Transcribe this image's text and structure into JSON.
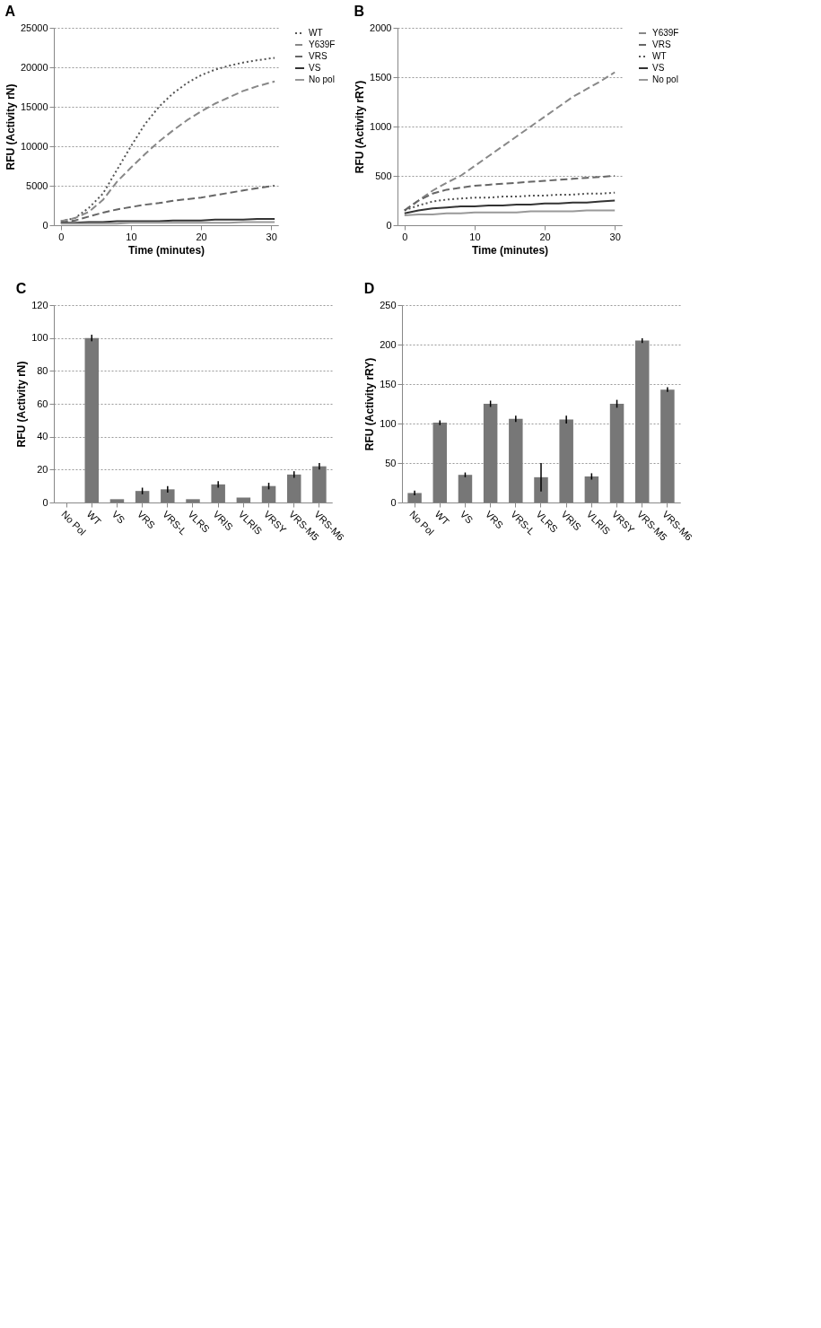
{
  "chart_data": [
    {
      "type": "line",
      "title": "A",
      "xlabel": "Time (minutes)",
      "ylabel": "RFU (Activity rN)",
      "xlim": [
        -1,
        31
      ],
      "xticks": [
        0,
        10,
        20,
        30
      ],
      "ylim": [
        0,
        25000
      ],
      "yticks": [
        0,
        5000,
        10000,
        15000,
        20000,
        25000
      ],
      "grid": "y",
      "legend": "right",
      "x": [
        0,
        2,
        4,
        6,
        8,
        10,
        12,
        14,
        16,
        18,
        20,
        22,
        24,
        26,
        28,
        30.5
      ],
      "series": [
        {
          "name": "WT",
          "color": "#555555",
          "line_style": "dotted",
          "values": [
            500,
            900,
            2200,
            4000,
            7000,
            10000,
            12800,
            15000,
            16700,
            18000,
            19000,
            19700,
            20200,
            20600,
            20900,
            21200
          ]
        },
        {
          "name": "Y639F",
          "color": "#888888",
          "line_style": "dashed",
          "values": [
            500,
            900,
            1700,
            3200,
            5500,
            7300,
            9000,
            10600,
            12000,
            13300,
            14400,
            15400,
            16200,
            17000,
            17600,
            18200
          ]
        },
        {
          "name": "VRS",
          "color": "#666666",
          "line_style": "dashed",
          "values": [
            300,
            600,
            1100,
            1600,
            2000,
            2300,
            2600,
            2800,
            3100,
            3300,
            3500,
            3800,
            4100,
            4400,
            4700,
            5000
          ]
        },
        {
          "name": "VS",
          "color": "#333333",
          "line_style": "solid",
          "values": [
            300,
            300,
            400,
            400,
            500,
            500,
            500,
            500,
            600,
            600,
            600,
            700,
            700,
            700,
            800,
            800
          ]
        },
        {
          "name": "No pol",
          "color": "#999999",
          "line_style": "solid",
          "values": [
            200,
            200,
            200,
            200,
            200,
            300,
            300,
            300,
            300,
            300,
            300,
            300,
            300,
            400,
            400,
            400
          ]
        }
      ]
    },
    {
      "type": "line",
      "title": "B",
      "xlabel": "Time (minutes)",
      "ylabel": "RFU (Activity rRY)",
      "xlim": [
        -1,
        31
      ],
      "xticks": [
        0,
        10,
        20,
        30
      ],
      "ylim": [
        0,
        2000
      ],
      "yticks": [
        0,
        500,
        1000,
        1500,
        2000
      ],
      "grid": "y",
      "legend": "right",
      "x": [
        0,
        2,
        4,
        6,
        8,
        10,
        12,
        14,
        16,
        18,
        20,
        22,
        24,
        26,
        28,
        30
      ],
      "series": [
        {
          "name": "Y639F",
          "color": "#888888",
          "line_style": "dashed",
          "values": [
            150,
            250,
            350,
            430,
            500,
            600,
            700,
            800,
            900,
            1000,
            1100,
            1200,
            1300,
            1380,
            1460,
            1550
          ]
        },
        {
          "name": "VRS",
          "color": "#666666",
          "line_style": "dashed",
          "values": [
            150,
            250,
            320,
            360,
            380,
            400,
            410,
            420,
            430,
            440,
            450,
            460,
            470,
            480,
            490,
            500
          ]
        },
        {
          "name": "WT",
          "color": "#555555",
          "line_style": "dotted",
          "values": [
            150,
            200,
            240,
            260,
            270,
            280,
            280,
            290,
            290,
            300,
            300,
            310,
            310,
            320,
            320,
            330
          ]
        },
        {
          "name": "VS",
          "color": "#333333",
          "line_style": "solid",
          "values": [
            120,
            150,
            170,
            180,
            190,
            190,
            200,
            200,
            210,
            210,
            220,
            220,
            230,
            230,
            240,
            250
          ]
        },
        {
          "name": "No pol",
          "color": "#999999",
          "line_style": "solid",
          "values": [
            100,
            110,
            110,
            120,
            120,
            130,
            130,
            130,
            130,
            140,
            140,
            140,
            140,
            150,
            150,
            150
          ]
        }
      ]
    },
    {
      "type": "bar",
      "title": "C",
      "ylabel": "RFU (Activity rN)",
      "ylim": [
        0,
        120
      ],
      "yticks": [
        0,
        20,
        40,
        60,
        80,
        100,
        120
      ],
      "grid": "y",
      "color": "#777777",
      "categories": [
        "No Pol",
        "WT",
        "VS",
        "VRS",
        "VRS-L",
        "VLRS",
        "VRIS",
        "VLRIS",
        "VRSY",
        "VRS-M5",
        "VRS-M6"
      ],
      "values": [
        0,
        100,
        2,
        7,
        8,
        2,
        11,
        3,
        10,
        17,
        22
      ],
      "errors": [
        null,
        2,
        null,
        2,
        2,
        null,
        2,
        null,
        2,
        2,
        2
      ]
    },
    {
      "type": "bar",
      "title": "D",
      "ylabel": "RFU (Activity rRY)",
      "ylim": [
        0,
        250
      ],
      "yticks": [
        0,
        50,
        100,
        150,
        200,
        250
      ],
      "grid": "y",
      "color": "#777777",
      "categories": [
        "No Pol",
        "WT",
        "VS",
        "VRS",
        "VRS-L",
        "VLRS",
        "VRIS",
        "VLRIS",
        "VRSY",
        "VRS-M5",
        "VRS-M6"
      ],
      "values": [
        12,
        101,
        35,
        125,
        106,
        32,
        105,
        33,
        125,
        205,
        143
      ],
      "errors": [
        3,
        3,
        3,
        4,
        4,
        18,
        5,
        4,
        5,
        3,
        3
      ]
    }
  ]
}
